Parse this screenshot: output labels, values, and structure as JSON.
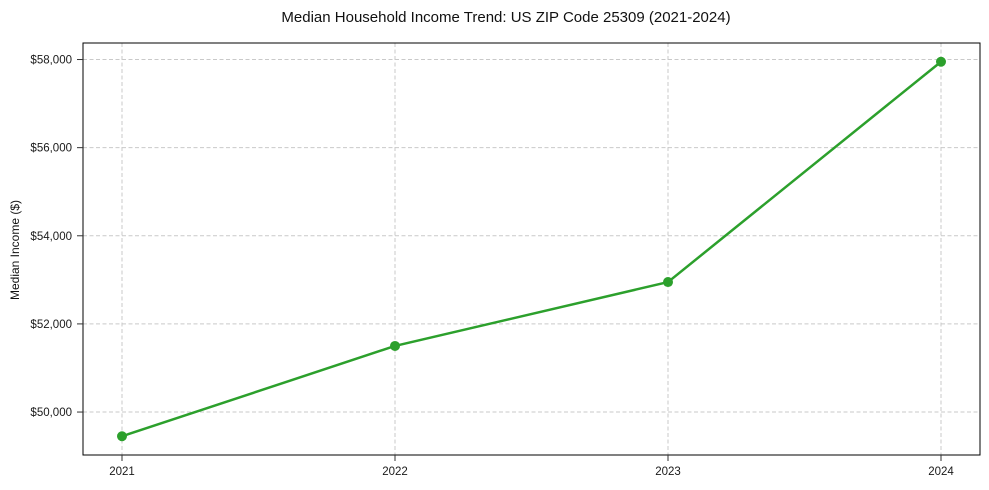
{
  "chart_data": {
    "type": "line",
    "title": "Median Household Income Trend: US ZIP Code 25309 (2021-2024)",
    "xlabel": "",
    "ylabel": "Median Income ($)",
    "categories": [
      "2021",
      "2022",
      "2023",
      "2024"
    ],
    "values": [
      49450,
      51500,
      52950,
      57950
    ],
    "yticks": [
      50000,
      52000,
      54000,
      56000,
      58000
    ],
    "ytick_labels": [
      "$50,000",
      "$52,000",
      "$54,000",
      "$56,000",
      "$58,000"
    ],
    "ylim": [
      49025,
      58375
    ],
    "grid": true,
    "grid_style": "dashed",
    "legend": "none",
    "colors": {
      "line": "#2ca02c",
      "marker": "#2ca02c",
      "gridline": "#c9c9c9",
      "border": "#000000",
      "tick": "#333333",
      "text": "#1a1a1a"
    }
  }
}
